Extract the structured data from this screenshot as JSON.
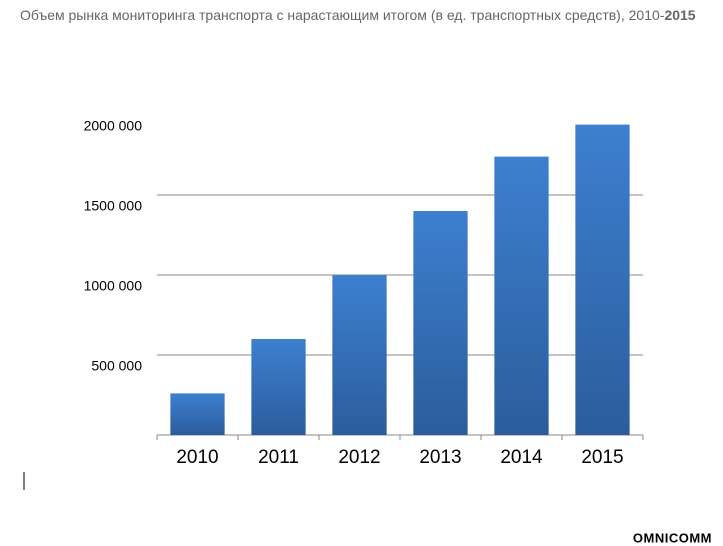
{
  "chart_data": {
    "type": "bar",
    "title": "Объем рынка мониторинга транспорта с нарастающим итогом (в ед. транспортных средств), 2010-",
    "title_bold": "2015",
    "categories": [
      "2010",
      "2011",
      "2012",
      "2013",
      "2014",
      "2015"
    ],
    "values": [
      260000,
      600000,
      1000000,
      1400000,
      1740000,
      1940000
    ],
    "color": "#3776c4",
    "ylim": [
      0,
      2000000
    ],
    "yticks": [
      {
        "value": 500000,
        "label": "500 000"
      },
      {
        "value": 1000000,
        "label": "1000 000"
      },
      {
        "value": 1500000,
        "label": "1500 000"
      },
      {
        "value": 2000000,
        "label": "2000 000"
      }
    ],
    "grid": true
  },
  "logo": "OMNICOMM"
}
